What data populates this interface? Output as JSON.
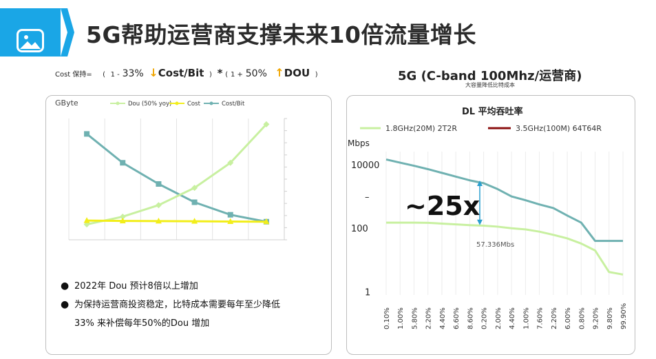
{
  "header": {
    "title": "5G帮助运营商支撑未来10倍流量增长"
  },
  "formula": {
    "prefix": "Cost 保持=",
    "p1_open": "(",
    "p1_one": "1 -",
    "p1_pct": "33%",
    "p1_label": "Cost/Bit",
    "p1_close": ")",
    "mult": "*",
    "p2_open": "(",
    "p2_one": "1 +",
    "p2_pct": "50%",
    "p2_label": "DOU",
    "p2_close": ")"
  },
  "left_panel": {
    "bullets": [
      "2022年 Dou 预计8倍以上增加",
      "为保持运营商投资稳定，比特成本需要每年至少降低",
      "33% 来补偿每年50%的Dou 增加"
    ]
  },
  "right_panel": {
    "title": "5G (C-band 100Mhz/运营商)",
    "subtitle": "大容量降低比特成本"
  },
  "chart_data": [
    {
      "type": "line",
      "ylabel": "GByte",
      "grid": true,
      "legend_placement": "top",
      "x": [
        1,
        2,
        3,
        4,
        5,
        6
      ],
      "series": [
        {
          "name": "Dou (50% yoy)",
          "color": "#c8f0a0",
          "marker": "diamond",
          "values": [
            0.8,
            1.2,
            1.8,
            2.7,
            4.0,
            6.0
          ]
        },
        {
          "name": "Cost",
          "color": "#f2ee1a",
          "marker": "triangle",
          "values": [
            1.0,
            0.98,
            0.97,
            0.96,
            0.95,
            0.94
          ]
        },
        {
          "name": "Cost/Bit",
          "color": "#6fb1b1",
          "marker": "square",
          "values": [
            5.5,
            4.0,
            2.9,
            1.95,
            1.3,
            0.94
          ]
        }
      ],
      "ylim": [
        0,
        6.3
      ]
    },
    {
      "type": "line",
      "title": "DL  平均吞吐率",
      "ylabel": "Mbps",
      "yscale": "log",
      "ytick_labels": [
        "10000",
        "–",
        "100",
        "1"
      ],
      "xtick_labels": [
        "0.10%",
        "1.00%",
        "5.80%",
        "2.20%",
        "4.40%",
        "6.60%",
        "8.60%",
        "0.20%",
        "2.00%",
        "4.40%",
        "1.00%",
        "7.60%",
        "2.20%",
        "6.00%",
        "0.80%",
        "9.20%",
        "9.80%",
        "99.90%"
      ],
      "legend_placement": "top",
      "series": [
        {
          "name": "1.8GHz(20M) 2T2R",
          "color": "#c8f0a0",
          "values": [
            150,
            150,
            150,
            148,
            140,
            132,
            125,
            120,
            112,
            100,
            92,
            78,
            62,
            48,
            33,
            20,
            4.2,
            3.5
          ]
        },
        {
          "name": "3.5GHz(100M) 64T64R",
          "color": "#6fb1b1",
          "values": [
            14500,
            11500,
            9200,
            7200,
            5500,
            4200,
            3200,
            2600,
            1700,
            1000,
            760,
            560,
            430,
            250,
            150,
            40,
            40,
            40
          ]
        }
      ],
      "annotations": [
        {
          "text": "~25x"
        },
        {
          "text": "57.336Mbs"
        }
      ],
      "ylim": [
        0.8,
        20000
      ]
    }
  ]
}
